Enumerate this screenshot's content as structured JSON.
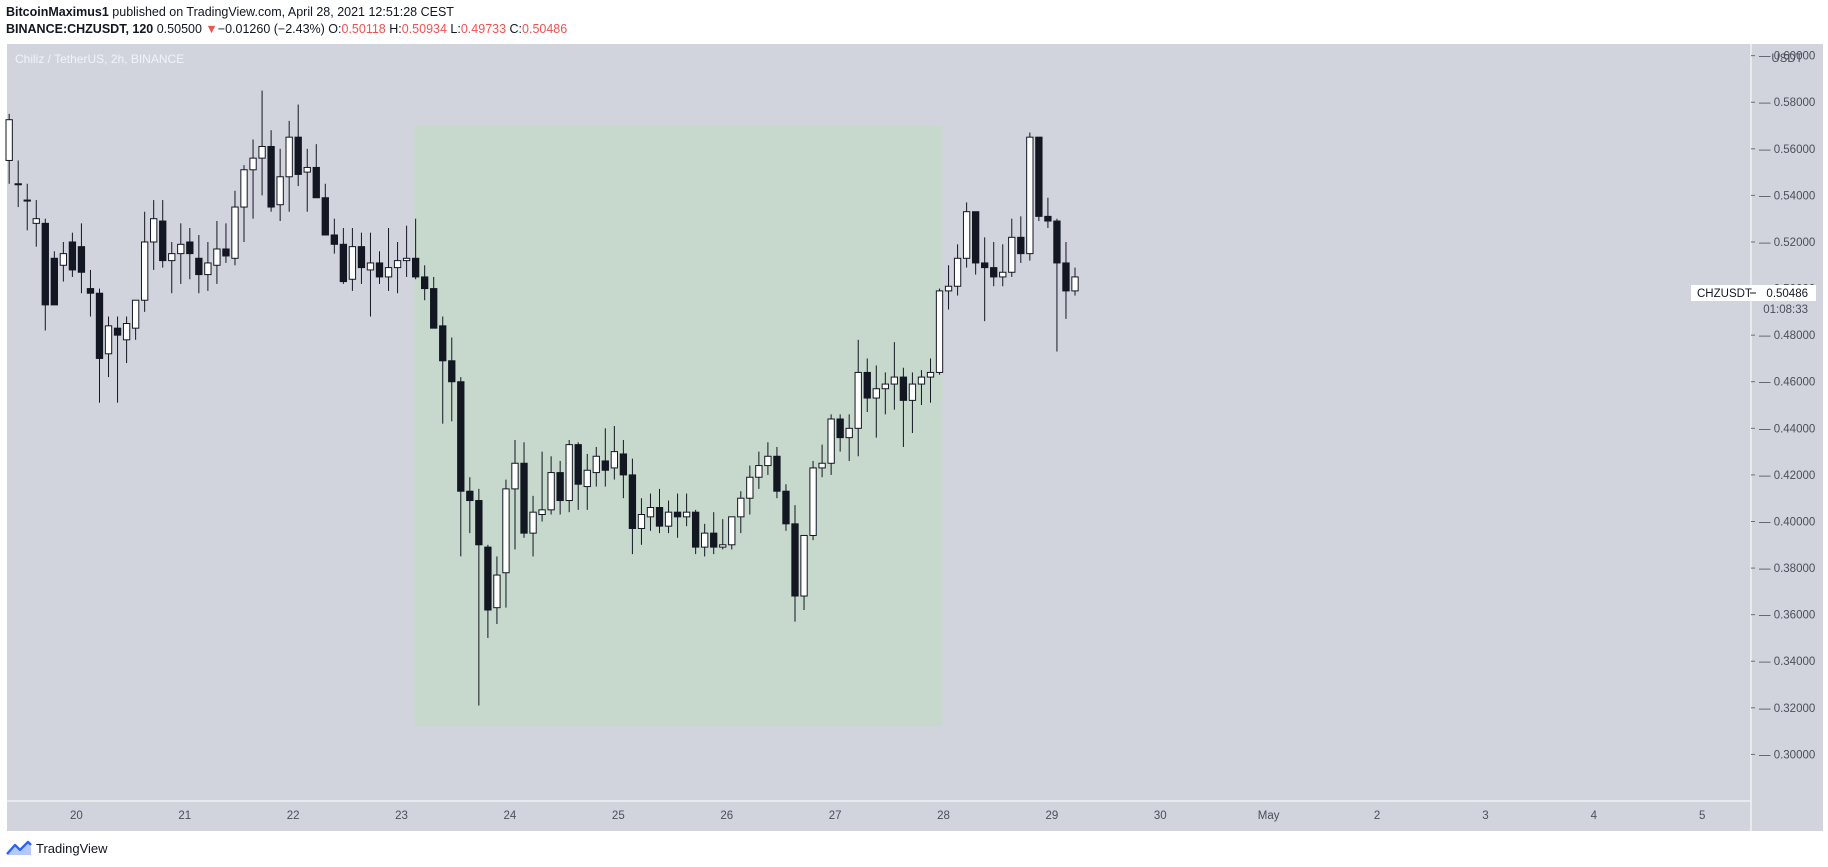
{
  "header": {
    "author": "BitcoinMaximus1",
    "published_text": " published on TradingView.com, April 28, 2021 12:51:28 CEST",
    "symbol": "BINANCE:CHZUSDT, 120",
    "last": "0.50500",
    "arrow": "▼",
    "change": "−0.01260 (−2.43%)",
    "o_label": "O:",
    "o": "0.50118",
    "h_label": "H:",
    "h": "0.50934",
    "l_label": "L:",
    "l": "0.49733",
    "c_label": "C:",
    "c": "0.50486"
  },
  "chart_title": "Chiliz / TetherUS, 2h, BINANCE",
  "currency_label": "USDT",
  "price_tag": {
    "symbol": "CHZUSDT",
    "price": "0.50486",
    "countdown": "01:08:33"
  },
  "footer": {
    "brand": "TradingView"
  },
  "colors": {
    "up": "#ffffff",
    "down": "#131722",
    "highlight": "#c6d9cc",
    "background": "#d1d4dc"
  },
  "chart_data": {
    "type": "candlestick",
    "title": "Chiliz / TetherUS, 2h, BINANCE",
    "ylim": [
      0.28,
      0.605
    ],
    "y_ticks": [
      "0.60000",
      "0.58000",
      "0.56000",
      "0.54000",
      "0.52000",
      "0.50000",
      "0.48000",
      "0.46000",
      "0.44000",
      "0.42000",
      "0.40000",
      "0.38000",
      "0.36000",
      "0.34000",
      "0.32000",
      "0.30000"
    ],
    "x_ticks": [
      {
        "label": "20",
        "day": 20
      },
      {
        "label": "21",
        "day": 21
      },
      {
        "label": "22",
        "day": 22
      },
      {
        "label": "23",
        "day": 23
      },
      {
        "label": "24",
        "day": 24
      },
      {
        "label": "25",
        "day": 25
      },
      {
        "label": "26",
        "day": 26
      },
      {
        "label": "27",
        "day": 27
      },
      {
        "label": "28",
        "day": 28
      },
      {
        "label": "29",
        "day": 29
      },
      {
        "label": "30",
        "day": 30
      },
      {
        "label": "May",
        "day": 31
      },
      {
        "label": "2",
        "day": 32
      },
      {
        "label": "3",
        "day": 33
      },
      {
        "label": "4",
        "day": 34
      },
      {
        "label": "5",
        "day": 35
      }
    ],
    "x_range_days": [
      19.36,
      35.45
    ],
    "highlight_zone": {
      "x_start_day": 23.12,
      "x_end_day": 27.99,
      "y_low": 0.312,
      "y_high": 0.57
    },
    "candles": [
      [
        0.555,
        0.575,
        0.545,
        0.5725
      ],
      [
        0.545,
        0.555,
        0.535,
        0.545
      ],
      [
        0.538,
        0.545,
        0.525,
        0.538
      ],
      [
        0.528,
        0.538,
        0.518,
        0.53
      ],
      [
        0.528,
        0.53,
        0.482,
        0.493
      ],
      [
        0.513,
        0.516,
        0.495,
        0.493
      ],
      [
        0.51,
        0.52,
        0.503,
        0.515
      ],
      [
        0.52,
        0.524,
        0.505,
        0.508
      ],
      [
        0.518,
        0.528,
        0.498,
        0.507
      ],
      [
        0.5,
        0.508,
        0.488,
        0.498
      ],
      [
        0.498,
        0.5,
        0.451,
        0.47
      ],
      [
        0.472,
        0.488,
        0.462,
        0.484
      ],
      [
        0.483,
        0.488,
        0.451,
        0.48
      ],
      [
        0.478,
        0.488,
        0.468,
        0.485
      ],
      [
        0.483,
        0.495,
        0.478,
        0.495
      ],
      [
        0.495,
        0.533,
        0.49,
        0.52
      ],
      [
        0.52,
        0.538,
        0.508,
        0.53
      ],
      [
        0.529,
        0.538,
        0.509,
        0.512
      ],
      [
        0.512,
        0.52,
        0.498,
        0.515
      ],
      [
        0.515,
        0.528,
        0.502,
        0.519
      ],
      [
        0.52,
        0.526,
        0.504,
        0.515
      ],
      [
        0.513,
        0.523,
        0.498,
        0.506
      ],
      [
        0.506,
        0.52,
        0.499,
        0.511
      ],
      [
        0.51,
        0.529,
        0.502,
        0.517
      ],
      [
        0.517,
        0.528,
        0.511,
        0.514
      ],
      [
        0.513,
        0.542,
        0.51,
        0.535
      ],
      [
        0.535,
        0.553,
        0.52,
        0.551
      ],
      [
        0.551,
        0.564,
        0.53,
        0.556
      ],
      [
        0.556,
        0.585,
        0.54,
        0.561
      ],
      [
        0.561,
        0.568,
        0.533,
        0.535
      ],
      [
        0.536,
        0.56,
        0.529,
        0.548
      ],
      [
        0.548,
        0.572,
        0.533,
        0.565
      ],
      [
        0.565,
        0.579,
        0.544,
        0.549
      ],
      [
        0.55,
        0.56,
        0.533,
        0.552
      ],
      [
        0.552,
        0.562,
        0.54,
        0.539
      ],
      [
        0.539,
        0.545,
        0.524,
        0.523
      ],
      [
        0.523,
        0.53,
        0.515,
        0.519
      ],
      [
        0.519,
        0.526,
        0.502,
        0.503
      ],
      [
        0.504,
        0.526,
        0.499,
        0.518
      ],
      [
        0.518,
        0.524,
        0.502,
        0.509
      ],
      [
        0.508,
        0.524,
        0.488,
        0.511
      ],
      [
        0.511,
        0.516,
        0.502,
        0.505
      ],
      [
        0.505,
        0.526,
        0.499,
        0.509
      ],
      [
        0.509,
        0.52,
        0.498,
        0.512
      ],
      [
        0.512,
        0.527,
        0.505,
        0.513
      ],
      [
        0.513,
        0.53,
        0.504,
        0.505
      ],
      [
        0.505,
        0.51,
        0.495,
        0.5
      ],
      [
        0.5,
        0.505,
        0.485,
        0.483
      ],
      [
        0.484,
        0.488,
        0.442,
        0.469
      ],
      [
        0.469,
        0.479,
        0.443,
        0.46
      ],
      [
        0.46,
        0.462,
        0.385,
        0.413
      ],
      [
        0.413,
        0.419,
        0.395,
        0.409
      ],
      [
        0.409,
        0.414,
        0.321,
        0.39
      ],
      [
        0.389,
        0.39,
        0.35,
        0.362
      ],
      [
        0.363,
        0.385,
        0.356,
        0.377
      ],
      [
        0.378,
        0.418,
        0.363,
        0.414
      ],
      [
        0.414,
        0.435,
        0.388,
        0.425
      ],
      [
        0.425,
        0.434,
        0.393,
        0.395
      ],
      [
        0.395,
        0.411,
        0.385,
        0.404
      ],
      [
        0.403,
        0.43,
        0.4,
        0.405
      ],
      [
        0.405,
        0.428,
        0.403,
        0.421
      ],
      [
        0.421,
        0.426,
        0.403,
        0.409
      ],
      [
        0.409,
        0.435,
        0.404,
        0.433
      ],
      [
        0.433,
        0.434,
        0.405,
        0.416
      ],
      [
        0.415,
        0.429,
        0.405,
        0.422
      ],
      [
        0.421,
        0.432,
        0.415,
        0.428
      ],
      [
        0.426,
        0.44,
        0.415,
        0.422
      ],
      [
        0.423,
        0.441,
        0.418,
        0.43
      ],
      [
        0.429,
        0.435,
        0.41,
        0.42
      ],
      [
        0.42,
        0.427,
        0.386,
        0.397
      ],
      [
        0.397,
        0.41,
        0.39,
        0.403
      ],
      [
        0.402,
        0.412,
        0.396,
        0.406
      ],
      [
        0.406,
        0.414,
        0.395,
        0.398
      ],
      [
        0.398,
        0.409,
        0.395,
        0.404
      ],
      [
        0.404,
        0.412,
        0.393,
        0.402
      ],
      [
        0.402,
        0.412,
        0.398,
        0.404
      ],
      [
        0.404,
        0.405,
        0.386,
        0.389
      ],
      [
        0.389,
        0.399,
        0.385,
        0.395
      ],
      [
        0.395,
        0.404,
        0.386,
        0.389
      ],
      [
        0.389,
        0.401,
        0.388,
        0.39
      ],
      [
        0.39,
        0.4,
        0.388,
        0.402
      ],
      [
        0.402,
        0.413,
        0.395,
        0.41
      ],
      [
        0.41,
        0.424,
        0.403,
        0.419
      ],
      [
        0.419,
        0.43,
        0.414,
        0.424
      ],
      [
        0.424,
        0.434,
        0.42,
        0.428
      ],
      [
        0.428,
        0.432,
        0.41,
        0.413
      ],
      [
        0.413,
        0.416,
        0.396,
        0.399
      ],
      [
        0.399,
        0.407,
        0.357,
        0.368
      ],
      [
        0.368,
        0.394,
        0.362,
        0.394
      ],
      [
        0.394,
        0.426,
        0.392,
        0.423
      ],
      [
        0.423,
        0.433,
        0.419,
        0.425
      ],
      [
        0.425,
        0.446,
        0.42,
        0.444
      ],
      [
        0.444,
        0.446,
        0.43,
        0.436
      ],
      [
        0.436,
        0.446,
        0.426,
        0.44
      ],
      [
        0.44,
        0.478,
        0.428,
        0.464
      ],
      [
        0.464,
        0.47,
        0.447,
        0.453
      ],
      [
        0.453,
        0.467,
        0.436,
        0.457
      ],
      [
        0.457,
        0.464,
        0.446,
        0.459
      ],
      [
        0.459,
        0.477,
        0.448,
        0.462
      ],
      [
        0.462,
        0.466,
        0.432,
        0.452
      ],
      [
        0.452,
        0.464,
        0.438,
        0.459
      ],
      [
        0.459,
        0.465,
        0.45,
        0.462
      ],
      [
        0.462,
        0.47,
        0.451,
        0.464
      ],
      [
        0.464,
        0.5,
        0.463,
        0.499
      ],
      [
        0.499,
        0.51,
        0.491,
        0.501
      ],
      [
        0.501,
        0.519,
        0.497,
        0.513
      ],
      [
        0.513,
        0.537,
        0.509,
        0.533
      ],
      [
        0.533,
        0.532,
        0.506,
        0.511
      ],
      [
        0.511,
        0.522,
        0.486,
        0.509
      ],
      [
        0.509,
        0.52,
        0.501,
        0.505
      ],
      [
        0.505,
        0.519,
        0.501,
        0.507
      ],
      [
        0.507,
        0.53,
        0.505,
        0.522
      ],
      [
        0.522,
        0.531,
        0.511,
        0.515
      ],
      [
        0.515,
        0.567,
        0.512,
        0.565
      ],
      [
        0.565,
        0.564,
        0.529,
        0.531
      ],
      [
        0.531,
        0.539,
        0.526,
        0.529
      ],
      [
        0.529,
        0.53,
        0.473,
        0.511
      ],
      [
        0.511,
        0.52,
        0.487,
        0.499
      ],
      [
        0.499,
        0.509,
        0.497,
        0.505
      ]
    ]
  }
}
